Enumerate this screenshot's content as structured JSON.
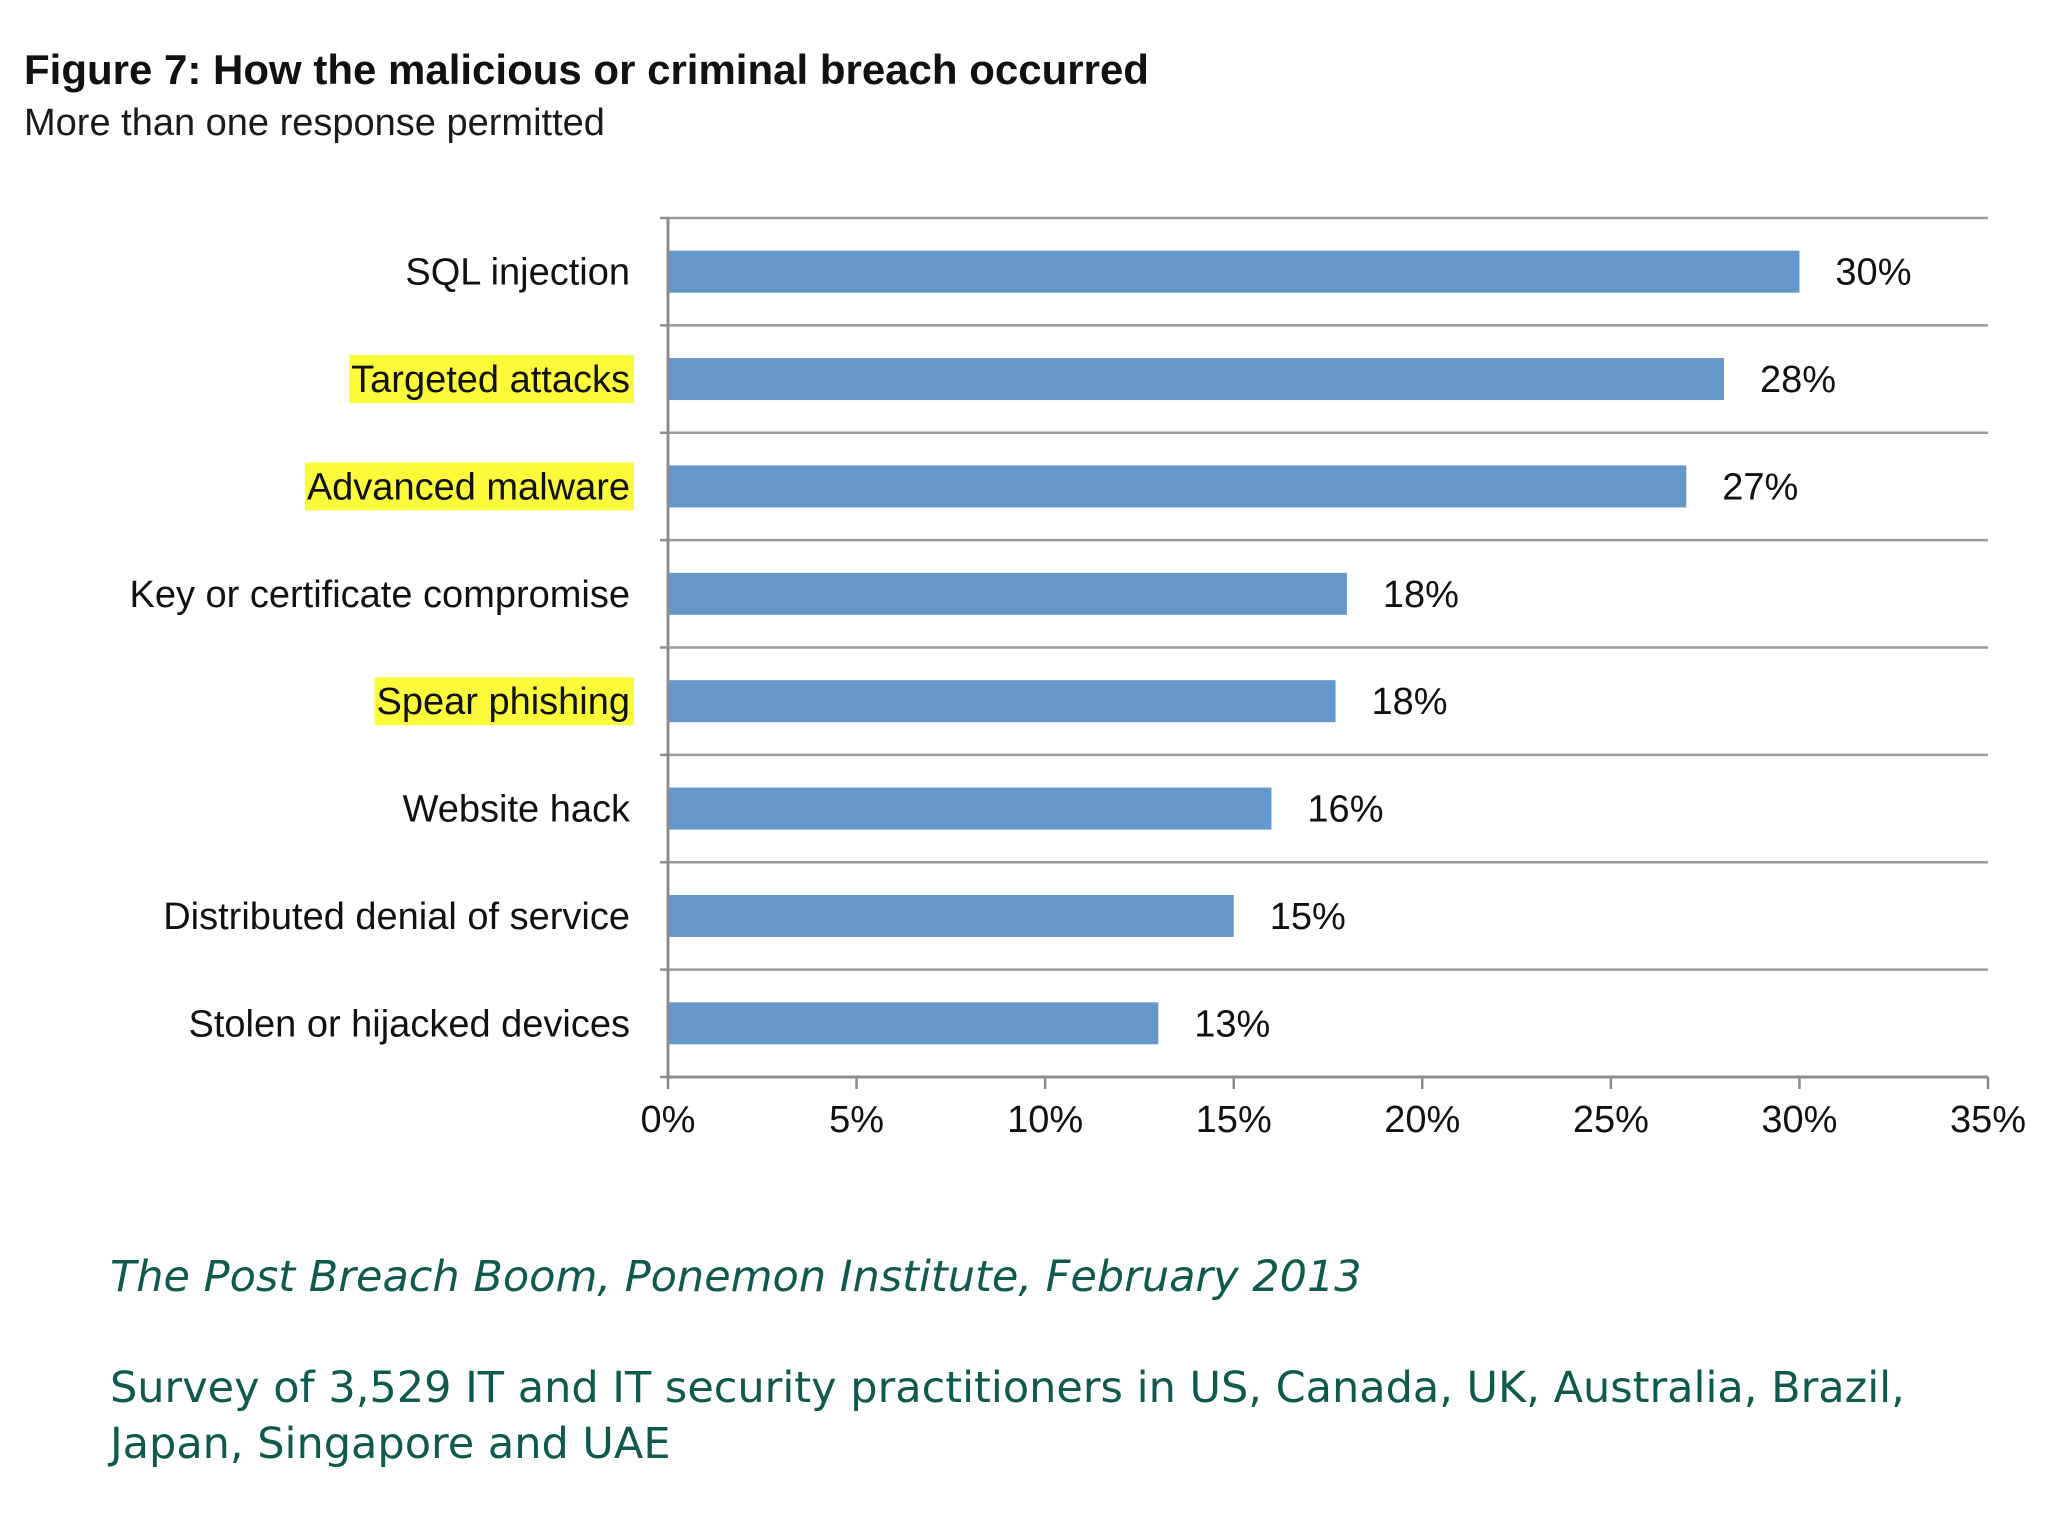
{
  "header": {
    "title": "Figure 7: How the malicious or criminal breach occurred",
    "subtitle": "More than one response permitted"
  },
  "chart_data": {
    "type": "bar",
    "orientation": "horizontal",
    "categories": [
      "SQL injection",
      "Targeted attacks",
      "Advanced malware",
      "Key or certificate compromise",
      "Spear phishing",
      "Website hack",
      "Distributed denial of service",
      "Stolen or hijacked devices"
    ],
    "values": [
      30,
      28,
      27,
      18,
      17.7,
      16,
      15,
      13
    ],
    "value_labels": [
      "30%",
      "28%",
      "27%",
      "18%",
      "18%",
      "16%",
      "15%",
      "13%"
    ],
    "highlighted_categories": [
      "Targeted attacks",
      "Advanced malware",
      "Spear phishing"
    ],
    "xlim": [
      0,
      35
    ],
    "xticks": [
      0,
      5,
      10,
      15,
      20,
      25,
      30,
      35
    ],
    "xtick_labels": [
      "0%",
      "5%",
      "10%",
      "15%",
      "20%",
      "25%",
      "30%",
      "35%"
    ],
    "xlabel": "",
    "ylabel": "",
    "grid": "horizontal separators between categories",
    "legend": "none",
    "colors": {
      "bar": "#6497cb",
      "highlight": "#fbfb3c",
      "grid": "#9a9a9a",
      "axis": "#8c8c8c",
      "text": "#111111"
    }
  },
  "footer": {
    "source": "The Post Breach Boom, Ponemon Institute, February 2013",
    "survey": "Survey of 3,529 IT and IT security practitioners in US, Canada, UK, Australia, Brazil, Japan, Singapore and UAE"
  }
}
